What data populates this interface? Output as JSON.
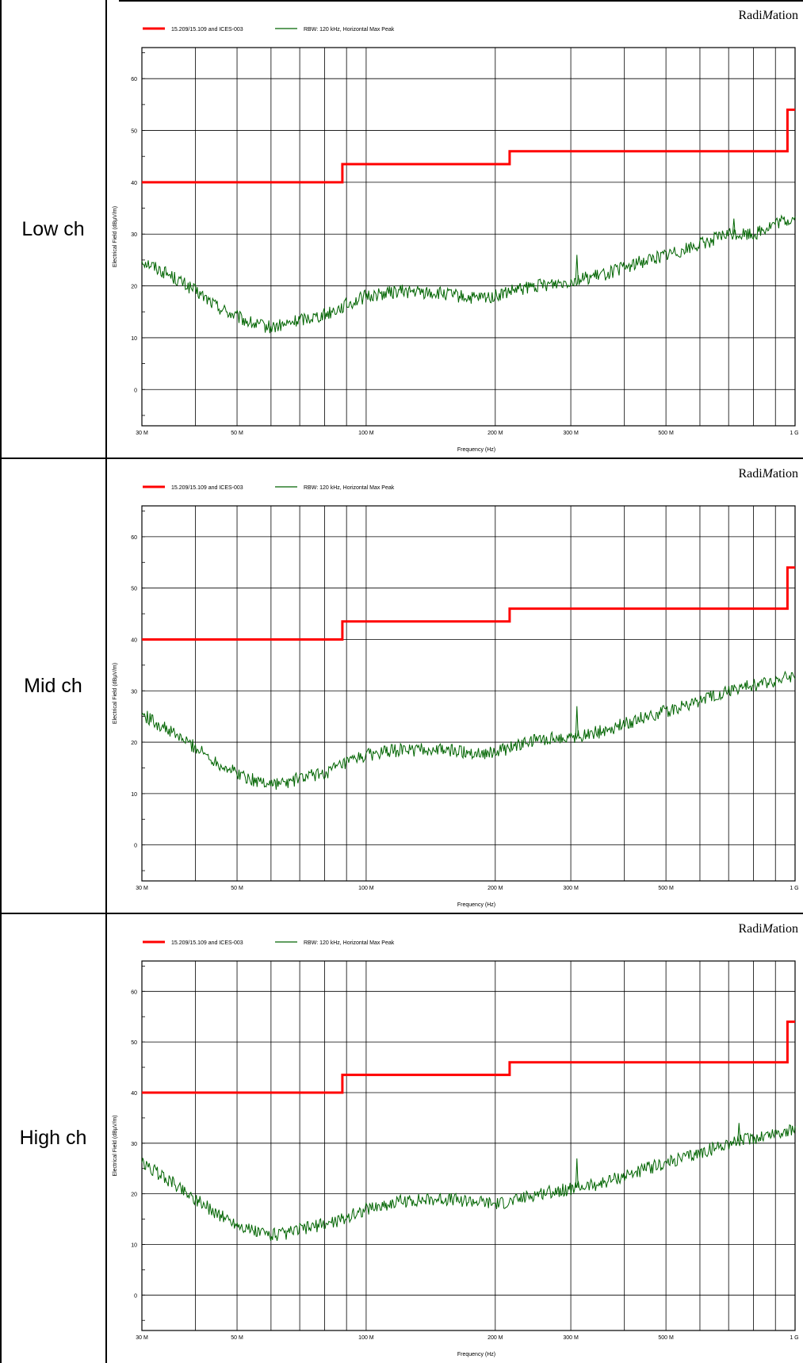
{
  "rows": [
    {
      "label": "Low ch",
      "chart": {
        "brand": "RadiMation",
        "brand_plain": "Radi",
        "brand_italic": "M",
        "brand_tail": "ation",
        "ylabel": "Electrical Field (dBµV/m)",
        "xlabel": "Frequency (Hz)",
        "y_ticks": [
          "0",
          "10",
          "20",
          "30",
          "40",
          "50",
          "60"
        ],
        "x_ticks": [
          "30 M",
          "50 M",
          "100 M",
          "200 M",
          "300 M",
          "500 M",
          "1 G"
        ]
      }
    },
    {
      "label": "Mid ch",
      "chart": {
        "brand": "RadiMation",
        "brand_plain": "Radi",
        "brand_italic": "M",
        "brand_tail": "ation",
        "ylabel": "Electrical Field (dBµV/m)",
        "xlabel": "Frequency (Hz)",
        "y_ticks": [
          "0",
          "10",
          "20",
          "30",
          "40",
          "50",
          "60"
        ],
        "x_ticks": [
          "30 M",
          "50 M",
          "100 M",
          "200 M",
          "300 M",
          "500 M",
          "1 G"
        ]
      }
    },
    {
      "label": "High ch",
      "chart": {
        "brand": "RadiMation",
        "brand_plain": "Radi",
        "brand_italic": "M",
        "brand_tail": "ation",
        "ylabel": "Electrical Field (dBµV/m)",
        "xlabel": "Frequency (Hz)",
        "y_ticks": [
          "0",
          "10",
          "20",
          "30",
          "40",
          "50",
          "60"
        ],
        "x_ticks": [
          "30 M",
          "50 M",
          "100 M",
          "200 M",
          "300 M",
          "500 M",
          "1 G"
        ]
      }
    }
  ],
  "chart_data": [
    {
      "type": "line",
      "title": "",
      "xlabel": "Frequency (Hz)",
      "ylabel": "Electrical Field (dBµV/m)",
      "x_scale": "log",
      "xlim": [
        30000000,
        1000000000
      ],
      "ylim": [
        -7,
        66
      ],
      "grid": true,
      "legend_position": "top-left",
      "series": [
        {
          "name": "15.209/15.109 and ICES-003",
          "color": "#ff0000",
          "style": "step",
          "x": [
            30000000,
            88000000,
            88000000,
            216000000,
            216000000,
            960000000,
            960000000,
            1000000000
          ],
          "y": [
            40,
            40,
            43.5,
            43.5,
            46,
            46,
            54,
            54
          ]
        },
        {
          "name": "RBW: 120 kHz, Horizontal Max Peak",
          "color": "#006400",
          "x": [
            30000000,
            35000000,
            40000000,
            45000000,
            50000000,
            55000000,
            60000000,
            65000000,
            70000000,
            80000000,
            88000000,
            100000000,
            120000000,
            150000000,
            180000000,
            200000000,
            220000000,
            250000000,
            300000000,
            350000000,
            400000000,
            450000000,
            500000000,
            600000000,
            700000000,
            800000000,
            900000000,
            1000000000
          ],
          "y": [
            25,
            22,
            19,
            16,
            14,
            12.5,
            12,
            12.5,
            13.5,
            14.5,
            16,
            18,
            19,
            18.5,
            17.5,
            18,
            19,
            20,
            21,
            22,
            23.5,
            25,
            26,
            28,
            30,
            30,
            32,
            33
          ],
          "spikes": [
            {
              "x": 310000000,
              "y": 26
            },
            {
              "x": 720000000,
              "y": 33
            }
          ]
        }
      ]
    },
    {
      "type": "line",
      "title": "",
      "xlabel": "Frequency (Hz)",
      "ylabel": "Electrical Field (dBµV/m)",
      "x_scale": "log",
      "xlim": [
        30000000,
        1000000000
      ],
      "ylim": [
        -7,
        66
      ],
      "grid": true,
      "legend_position": "top-left",
      "series": [
        {
          "name": "15.209/15.109 and ICES-003",
          "color": "#ff0000",
          "style": "step",
          "x": [
            30000000,
            88000000,
            88000000,
            216000000,
            216000000,
            960000000,
            960000000,
            1000000000
          ],
          "y": [
            40,
            40,
            43.5,
            43.5,
            46,
            46,
            54,
            54
          ]
        },
        {
          "name": "RBW: 120 kHz, Horizontal Max Peak",
          "color": "#006400",
          "x": [
            30000000,
            35000000,
            40000000,
            45000000,
            50000000,
            55000000,
            60000000,
            65000000,
            70000000,
            80000000,
            88000000,
            100000000,
            120000000,
            150000000,
            180000000,
            200000000,
            220000000,
            250000000,
            300000000,
            350000000,
            400000000,
            450000000,
            500000000,
            600000000,
            700000000,
            800000000,
            900000000,
            1000000000
          ],
          "y": [
            25.5,
            22,
            19,
            16,
            14,
            12.5,
            12,
            12,
            13,
            14,
            15.5,
            17.5,
            18.5,
            18.5,
            18,
            18,
            19,
            20.5,
            21,
            22,
            23.5,
            25,
            26,
            28,
            30,
            31,
            32,
            33
          ],
          "spikes": [
            {
              "x": 310000000,
              "y": 27
            }
          ]
        }
      ]
    },
    {
      "type": "line",
      "title": "",
      "xlabel": "Frequency (Hz)",
      "ylabel": "Electrical Field (dBµV/m)",
      "x_scale": "log",
      "xlim": [
        30000000,
        1000000000
      ],
      "ylim": [
        -7,
        66
      ],
      "grid": true,
      "legend_position": "top-left",
      "series": [
        {
          "name": "15.209/15.109 and ICES-003",
          "color": "#ff0000",
          "style": "step",
          "x": [
            30000000,
            88000000,
            88000000,
            216000000,
            216000000,
            960000000,
            960000000,
            1000000000
          ],
          "y": [
            40,
            40,
            43.5,
            43.5,
            46,
            46,
            54,
            54
          ]
        },
        {
          "name": "RBW: 120 kHz, Horizontal Max Peak",
          "color": "#006400",
          "x": [
            30000000,
            35000000,
            40000000,
            45000000,
            50000000,
            55000000,
            60000000,
            65000000,
            70000000,
            80000000,
            88000000,
            100000000,
            120000000,
            150000000,
            180000000,
            200000000,
            220000000,
            250000000,
            300000000,
            350000000,
            400000000,
            450000000,
            500000000,
            600000000,
            700000000,
            800000000,
            900000000,
            1000000000
          ],
          "y": [
            26,
            22.5,
            19,
            16,
            14,
            12.5,
            12,
            12,
            13,
            14,
            15,
            17,
            18.5,
            19,
            18.5,
            18,
            18.5,
            20,
            21,
            22,
            23.5,
            25,
            26,
            28,
            30,
            31,
            32,
            32.5
          ],
          "spikes": [
            {
              "x": 310000000,
              "y": 27
            },
            {
              "x": 740000000,
              "y": 34
            }
          ]
        }
      ]
    }
  ]
}
